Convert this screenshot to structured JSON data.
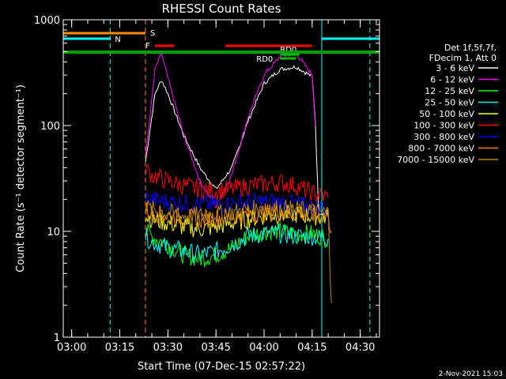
{
  "chart_data": {
    "type": "line",
    "title": "RHESSI Count Rates",
    "xlabel": "Start Time (07-Dec-15 02:57:22)",
    "ylabel": "Count Rate (s⁻¹ detector segment⁻¹)",
    "yscale": "log",
    "ylim": [
      1,
      1000
    ],
    "xlim": [
      "02:57:22",
      "04:36:00"
    ],
    "x_ticks": [
      "03:00",
      "03:15",
      "03:30",
      "03:45",
      "04:00",
      "04:15",
      "04:30"
    ],
    "y_ticks": [
      "1",
      "10",
      "100",
      "1000"
    ],
    "grid": false,
    "legend_position": "right",
    "legend_header": [
      "Det 1f,5f,7f,",
      "FDecim 1, Att 0"
    ],
    "footer_text": "2-Nov-2021 15:03",
    "series": [
      {
        "name": "3 - 6 keV",
        "color": "#ffffff",
        "x": [
          "03:23",
          "03:26",
          "03:28",
          "03:30",
          "03:35",
          "03:40",
          "03:45",
          "03:50",
          "03:55",
          "04:00",
          "04:05",
          "04:10",
          "04:15",
          "04:16",
          "04:17",
          "04:20"
        ],
        "values": [
          45,
          200,
          270,
          200,
          80,
          40,
          25,
          40,
          110,
          250,
          340,
          360,
          290,
          110,
          15,
          15
        ]
      },
      {
        "name": "6 - 12 keV",
        "color": "#ff00ff",
        "x": [
          "03:23",
          "03:26",
          "03:28",
          "03:30",
          "03:35",
          "03:40",
          "03:45",
          "03:50",
          "03:55",
          "04:00",
          "04:05",
          "04:10",
          "04:15",
          "04:16"
        ],
        "values": [
          50,
          340,
          480,
          280,
          80,
          30,
          17,
          35,
          120,
          300,
          450,
          480,
          300,
          100
        ]
      },
      {
        "name": "12 - 25 keV",
        "color": "#00ff00",
        "x": [
          "03:23",
          "03:25",
          "03:30",
          "03:35",
          "03:40",
          "03:45",
          "03:50",
          "03:55",
          "04:00",
          "04:05",
          "04:10",
          "04:15",
          "04:20"
        ],
        "values": [
          10,
          9,
          7.5,
          6,
          5.5,
          6,
          7,
          9,
          10,
          10,
          9.5,
          9.5,
          8.5
        ]
      },
      {
        "name": "25 - 50 keV",
        "color": "#00ffff",
        "x": [
          "03:23",
          "03:25",
          "03:30",
          "03:35",
          "03:40",
          "03:45",
          "03:50",
          "03:55",
          "04:00",
          "04:05",
          "04:10",
          "04:15",
          "04:20"
        ],
        "values": [
          9,
          8,
          7,
          6.5,
          6,
          6.5,
          7.5,
          9,
          9.5,
          9.5,
          9,
          9,
          8.5
        ]
      },
      {
        "name": "50 - 100 keV",
        "color": "#ffff00",
        "x": [
          "03:23",
          "03:25",
          "03:30",
          "03:35",
          "03:40",
          "03:45",
          "03:50",
          "03:55",
          "04:00",
          "04:05",
          "04:10",
          "04:15",
          "04:20"
        ],
        "values": [
          14,
          13,
          12,
          11,
          10.5,
          11,
          12,
          13,
          14,
          14.5,
          14.5,
          14,
          13.5
        ]
      },
      {
        "name": "100 - 300 keV",
        "color": "#ff0000",
        "x": [
          "03:23",
          "03:25",
          "03:30",
          "03:35",
          "03:40",
          "03:45",
          "03:50",
          "03:55",
          "04:00",
          "04:05",
          "04:10",
          "04:15",
          "04:20"
        ],
        "values": [
          40,
          34,
          30,
          27,
          25,
          24,
          25,
          27,
          28,
          29,
          27,
          23,
          21
        ]
      },
      {
        "name": "300 - 800 keV",
        "color": "#0000ff",
        "x": [
          "03:23",
          "03:25",
          "03:30",
          "03:35",
          "03:40",
          "03:45",
          "03:50",
          "03:55",
          "04:00",
          "04:05",
          "04:10",
          "04:15",
          "04:20"
        ],
        "values": [
          21,
          20,
          19,
          18.5,
          18,
          18,
          18.5,
          19,
          19,
          19,
          18,
          17,
          16.5
        ]
      },
      {
        "name": "800 - 7000 keV",
        "color": "#ff8c00",
        "x": [
          "03:23",
          "03:25",
          "03:30",
          "03:35",
          "03:40",
          "03:45",
          "03:50",
          "03:55",
          "04:00",
          "04:05",
          "04:10",
          "04:15",
          "04:20",
          "04:21"
        ],
        "values": [
          16,
          15,
          14,
          13.5,
          13,
          13.5,
          14,
          14.5,
          15,
          15,
          15,
          14.5,
          14,
          10
        ]
      },
      {
        "name": "7000 - 15000 keV",
        "color": "#b8860b",
        "x": [
          "03:23",
          "03:25",
          "03:30",
          "03:35",
          "03:40",
          "03:45",
          "03:50",
          "03:55",
          "04:00",
          "04:05",
          "04:10",
          "04:15",
          "04:20",
          "04:21"
        ],
        "values": [
          17,
          16,
          15,
          14,
          14,
          14.5,
          15,
          16,
          16.5,
          16.5,
          16,
          15.5,
          15,
          2.1
        ]
      }
    ],
    "state_bars": [
      {
        "label": "S",
        "color": "#ff8c00",
        "start": "02:57:22",
        "end": "03:23"
      },
      {
        "label": "N",
        "color": "#00ffff",
        "start": "02:57:22",
        "end": "03:12"
      },
      {
        "label": "N",
        "color": "#00ffff",
        "start": "04:18",
        "end": "04:36"
      },
      {
        "label": "F",
        "color": "#ff0000",
        "start": "03:26",
        "end": "03:32"
      },
      {
        "label": "F",
        "color": "#ff0000",
        "start": "03:48",
        "end": "04:15"
      },
      {
        "label": "RD0",
        "color": "#00c000",
        "start": "04:05",
        "end": "04:11"
      },
      {
        "label": "RD0",
        "color": "#00c000",
        "start": "04:05",
        "end": "04:10"
      },
      {
        "label": "",
        "color": "#00a000",
        "start": "02:57:22",
        "end": "04:36"
      }
    ],
    "vertical_markers": [
      {
        "time": "02:57:22",
        "color": "#00ffff",
        "style": "solid"
      },
      {
        "time": "03:12",
        "color": "#00ffff",
        "style": "dashed"
      },
      {
        "time": "03:23",
        "color": "#ff8c00",
        "style": "dashed"
      },
      {
        "time": "04:18",
        "color": "#00ffff",
        "style": "solid"
      },
      {
        "time": "04:33",
        "color": "#00ffff",
        "style": "dashed"
      }
    ]
  }
}
